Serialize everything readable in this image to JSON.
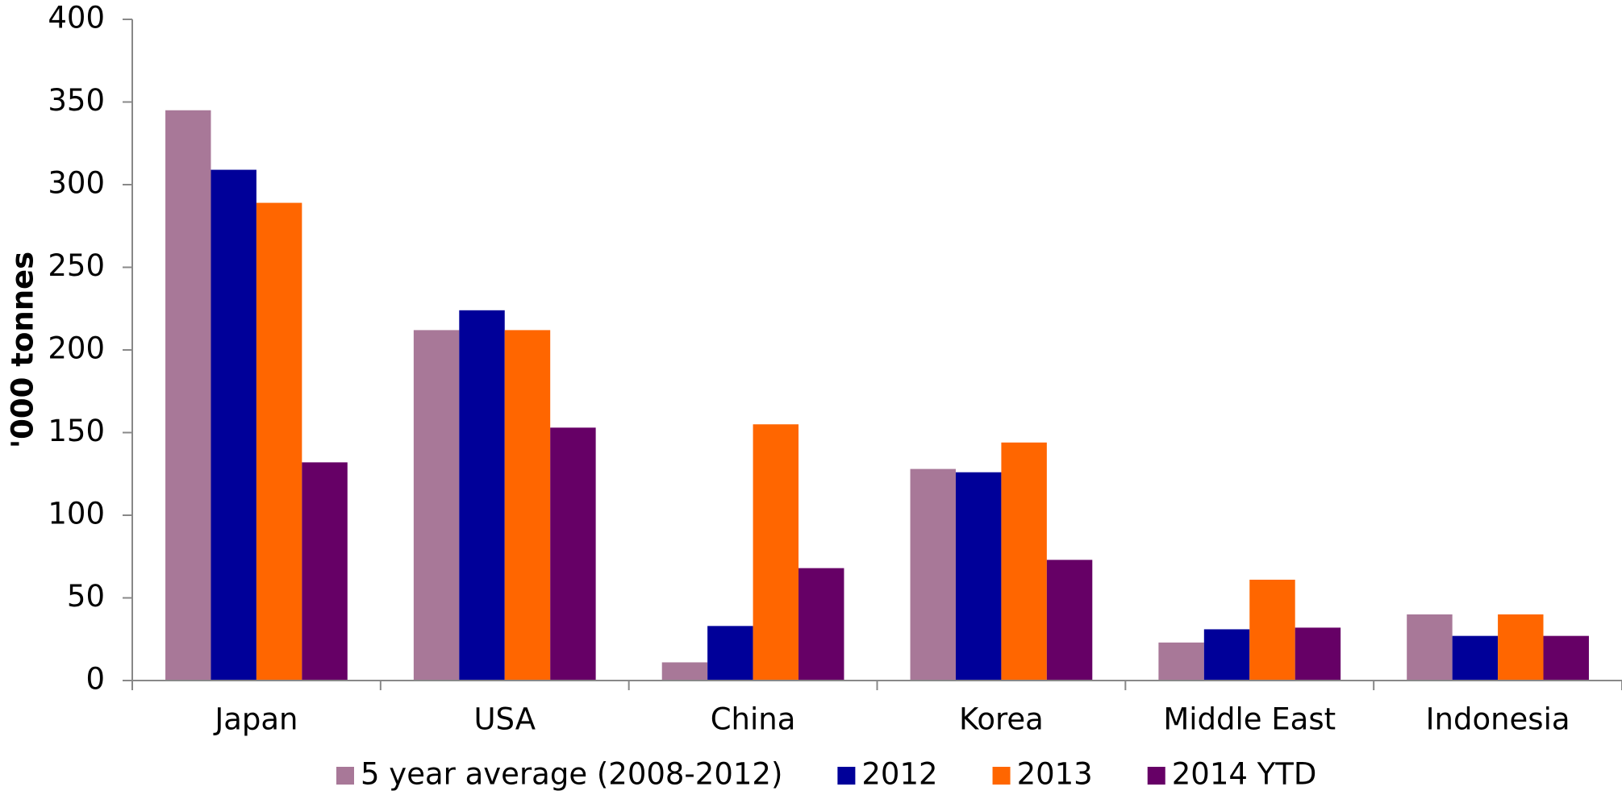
{
  "chart_data": {
    "type": "bar",
    "y_label": "'000 tonnes",
    "categories": [
      "Japan",
      "USA",
      "China",
      "Korea",
      "Middle East",
      "Indonesia"
    ],
    "series": [
      {
        "name": "5 year average (2008-2012)",
        "color": "#a87898",
        "values": [
          345,
          212,
          11,
          128,
          23,
          40
        ]
      },
      {
        "name": "2012",
        "color": "#000099",
        "values": [
          309,
          224,
          33,
          126,
          31,
          27
        ]
      },
      {
        "name": "2013",
        "color": "#ff6600",
        "values": [
          289,
          212,
          155,
          144,
          61,
          40
        ]
      },
      {
        "name": "2014 YTD",
        "color": "#660066",
        "values": [
          132,
          153,
          68,
          73,
          32,
          27
        ]
      }
    ],
    "ylim": [
      0,
      400
    ],
    "yticks": [
      0,
      50,
      100,
      150,
      200,
      250,
      300,
      350,
      400
    ],
    "grid": false,
    "legend": "bottom"
  }
}
